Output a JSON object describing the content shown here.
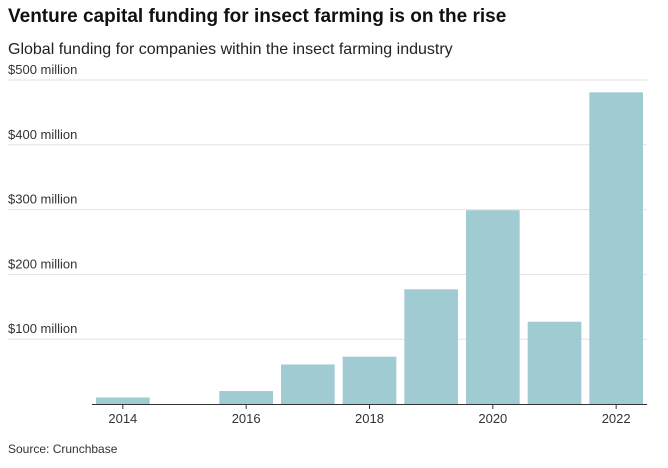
{
  "chart_data": {
    "type": "bar",
    "title": "Venture capital funding for insect farming is on the rise",
    "subtitle": "Global funding for companies within the insect farming industry",
    "source": "Source: Crunchbase",
    "categories": [
      "2014",
      "2015",
      "2016",
      "2017",
      "2018",
      "2019",
      "2020",
      "2021",
      "2022"
    ],
    "values": [
      10,
      0,
      20,
      61,
      73,
      177,
      299,
      127,
      481
    ],
    "unit": "million USD",
    "xlabel": "",
    "ylabel": "",
    "ylim": [
      0,
      500
    ],
    "yticks": [
      {
        "value": 100,
        "label": "$100 million"
      },
      {
        "value": 200,
        "label": "$200 million"
      },
      {
        "value": 300,
        "label": "$300 million"
      },
      {
        "value": 400,
        "label": "$400 million"
      },
      {
        "value": 500,
        "label": "$500 million"
      }
    ],
    "xtick_labels": [
      "2014",
      "2016",
      "2018",
      "2020",
      "2022"
    ],
    "grid": true,
    "bar_color": "#a0cbd2",
    "grid_color": "#e2e2e2",
    "axis_color": "#333333"
  }
}
